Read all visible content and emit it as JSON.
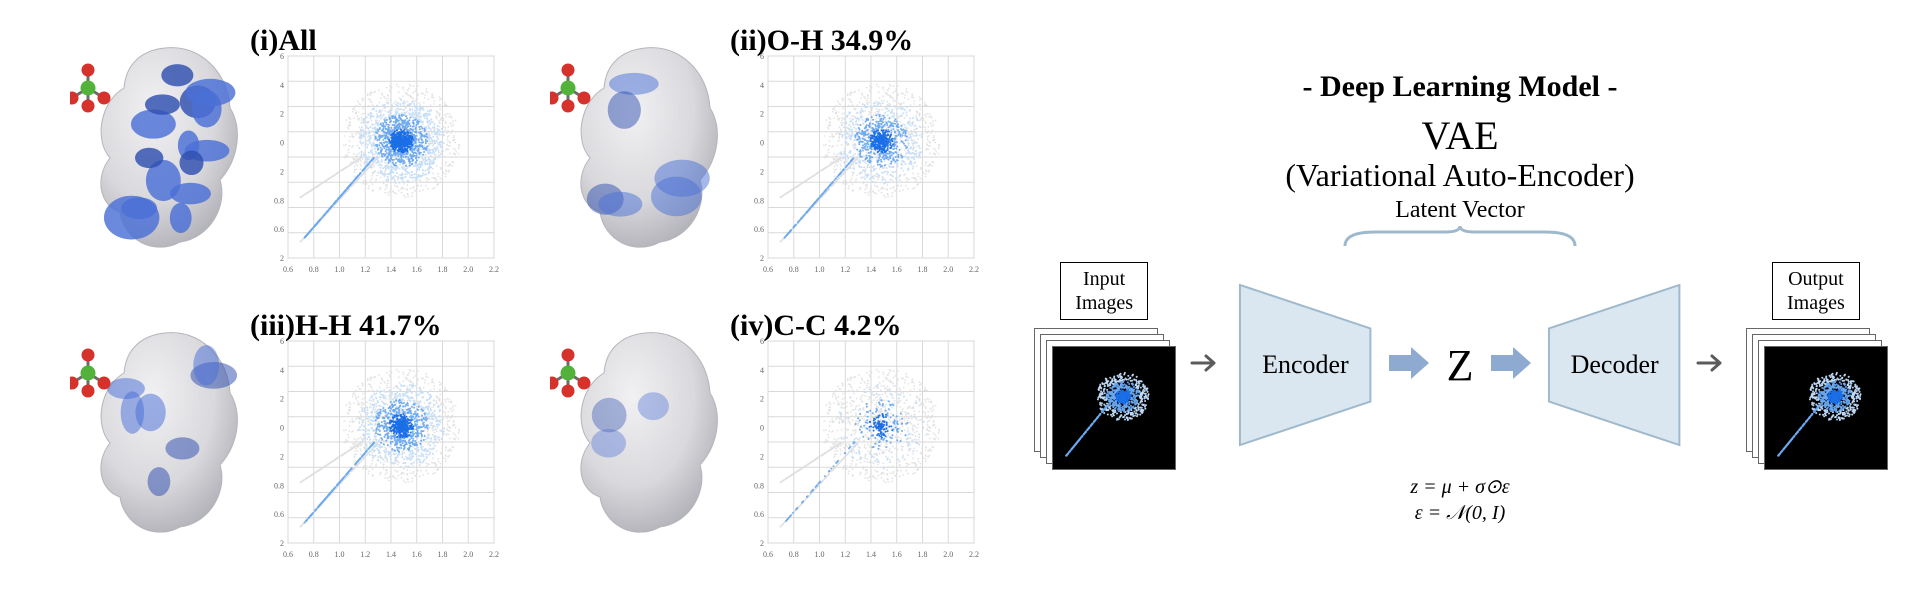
{
  "panels": [
    {
      "key": "i",
      "label": "(i)All",
      "cloud_intensity": 1.0,
      "surface_blue": 0.95
    },
    {
      "key": "ii",
      "label": "(ii)O-H 34.9%",
      "cloud_intensity": 0.6,
      "surface_blue": 0.3
    },
    {
      "key": "iii",
      "label": "(iii)H-H 41.7%",
      "cloud_intensity": 0.75,
      "surface_blue": 0.35
    },
    {
      "key": "iv",
      "label": "(iv)C-C 4.2%",
      "cloud_intensity": 0.18,
      "surface_blue": 0.08
    }
  ],
  "fingerprint_plot": {
    "type": "scatter-density",
    "x_ticks": [
      "0.6",
      "0.8",
      "1.0",
      "1.2",
      "1.4",
      "1.6",
      "1.8",
      "2.0",
      "2.2"
    ],
    "y_ticks": [
      "6",
      "4",
      "2",
      "0",
      "2",
      "0.8",
      "0.6",
      "2"
    ],
    "xlim": [
      0.6,
      2.4
    ],
    "ylim": [
      0.6,
      2.4
    ],
    "background_color": "#ffffff",
    "grid_color": "#d9d9d9",
    "outline_color": "#dddddd",
    "cloud_color_strong": "#1b6fe6",
    "cloud_color_mid": "#6aa9f0",
    "cloud_color_light": "#c2ddfb",
    "shadow_color": "#bdbdbd",
    "tick_fontsize": 8,
    "axis_label_fontsize": 12
  },
  "hirshfeld_surface": {
    "base_fill": "#d4d4d8",
    "base_highlight": "#f0f0f3",
    "blue_patch": "#4a6fd6",
    "blue_patch_dark": "#2f4fb0",
    "counterion": {
      "center_color": "#53b23a",
      "oxygen_color": "#d4322a",
      "bond_color": "#6c6c6c"
    }
  },
  "vae": {
    "heading": "- Deep Learning Model -",
    "title_line1": "VAE",
    "title_line2": "(Variational Auto-Encoder)",
    "latent_label": "Latent Vector",
    "input_label": "Input\nImages",
    "output_label": "Output\nImages",
    "encoder_label": "Encoder",
    "decoder_label": "Decoder",
    "z_label": "Z",
    "formula_line1": "z = μ + σ⊙ε",
    "formula_line2": "ε = 𝒩(0, I)",
    "trapezoid_fill": "#dbe7f0",
    "trapezoid_stroke": "#9fb9cc",
    "arrow_color": "#8faad0",
    "arrow_thin_color": "#5b5b5b",
    "thumb_bg": "#000000",
    "thumb_border": "#7a7a7a",
    "card_border": "#888888",
    "heading_fontsize": 30,
    "title_fontsize": 40,
    "subtitle_fontsize": 32,
    "encoder_fontsize": 26,
    "z_fontsize": 44
  }
}
